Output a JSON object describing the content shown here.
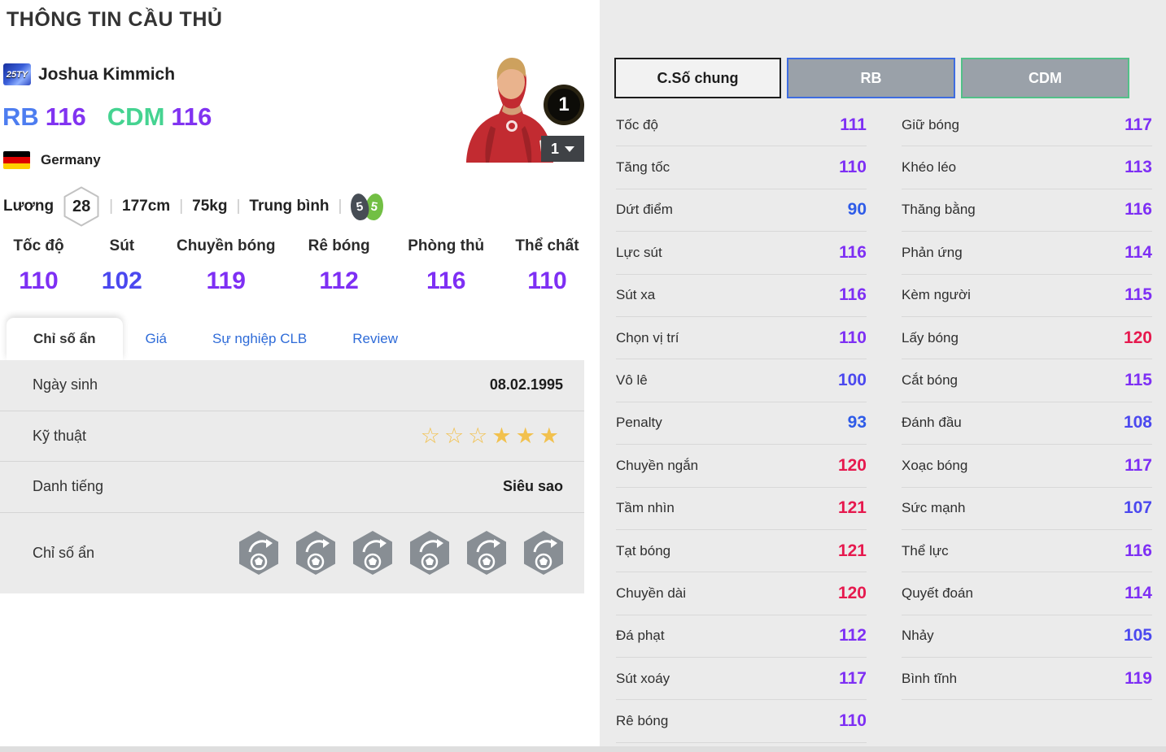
{
  "page": {
    "title": "THÔNG TIN CẦU THỦ"
  },
  "player": {
    "season_badge": "25TY",
    "name": "Joshua Kimmich",
    "positions": [
      {
        "label": "RB",
        "rating": "116"
      },
      {
        "label": "CDM",
        "rating": "116"
      }
    ],
    "nation": "Germany",
    "salary_label": "Lương",
    "salary": "28",
    "height": "177cm",
    "weight": "75kg",
    "body_type": "Trung bình",
    "foot_left": "5",
    "foot_right": "5",
    "level_badge": "1",
    "level_selected": "1"
  },
  "summary_stats": [
    {
      "label": "Tốc độ",
      "value": "110"
    },
    {
      "label": "Sút",
      "value": "102"
    },
    {
      "label": "Chuyền bóng",
      "value": "119"
    },
    {
      "label": "Rê bóng",
      "value": "112"
    },
    {
      "label": "Phòng thủ",
      "value": "116"
    },
    {
      "label": "Thể chất",
      "value": "110"
    }
  ],
  "tabs": [
    {
      "label": "Chỉ số ẩn",
      "active": true
    },
    {
      "label": "Giá",
      "active": false
    },
    {
      "label": "Sự nghiệp CLB",
      "active": false
    },
    {
      "label": "Review",
      "active": false
    }
  ],
  "info_rows": {
    "birth_label": "Ngày sinh",
    "birth_value": "08.02.1995",
    "skill_label": "Kỹ thuật",
    "skill_stars_total": 6,
    "skill_stars_filled": 3,
    "fame_label": "Danh tiếng",
    "fame_value": "Siêu sao",
    "hidden_label": "Chỉ số ẩn",
    "hidden_traits": [
      "hidden-trait-icon-1",
      "hidden-trait-icon-2",
      "hidden-trait-icon-3",
      "hidden-trait-icon-4",
      "hidden-trait-icon-5",
      "hidden-trait-icon-6"
    ]
  },
  "detail_panel": {
    "buttons": [
      {
        "label": "C.Số chung",
        "style": "general"
      },
      {
        "label": "RB",
        "style": "rb"
      },
      {
        "label": "CDM",
        "style": "cdm"
      }
    ],
    "left_column": [
      {
        "label": "Tốc độ",
        "value": "111"
      },
      {
        "label": "Tăng tốc",
        "value": "110"
      },
      {
        "label": "Dứt điểm",
        "value": "90"
      },
      {
        "label": "Lực sút",
        "value": "116"
      },
      {
        "label": "Sút xa",
        "value": "116"
      },
      {
        "label": "Chọn vị trí",
        "value": "110"
      },
      {
        "label": "Vô lê",
        "value": "100"
      },
      {
        "label": "Penalty",
        "value": "93"
      },
      {
        "label": "Chuyền ngắn",
        "value": "120"
      },
      {
        "label": "Tầm nhìn",
        "value": "121"
      },
      {
        "label": "Tạt bóng",
        "value": "121"
      },
      {
        "label": "Chuyền dài",
        "value": "120"
      },
      {
        "label": "Đá phạt",
        "value": "112"
      },
      {
        "label": "Sút xoáy",
        "value": "117"
      },
      {
        "label": "Rê bóng",
        "value": "110"
      }
    ],
    "right_column": [
      {
        "label": "Giữ bóng",
        "value": "117"
      },
      {
        "label": "Khéo léo",
        "value": "113"
      },
      {
        "label": "Thăng bằng",
        "value": "116"
      },
      {
        "label": "Phản ứng",
        "value": "114"
      },
      {
        "label": "Kèm người",
        "value": "115"
      },
      {
        "label": "Lấy bóng",
        "value": "120"
      },
      {
        "label": "Cắt bóng",
        "value": "115"
      },
      {
        "label": "Đánh đầu",
        "value": "108"
      },
      {
        "label": "Xoạc bóng",
        "value": "117"
      },
      {
        "label": "Sức mạnh",
        "value": "107"
      },
      {
        "label": "Thể lực",
        "value": "116"
      },
      {
        "label": "Quyết đoán",
        "value": "114"
      },
      {
        "label": "Nhảy",
        "value": "105"
      },
      {
        "label": "Bình tĩnh",
        "value": "119"
      }
    ]
  },
  "colors": {
    "rb_blue": "#4d7df0",
    "cdm_green": "#45d391",
    "ovr_purple": "#8133f1",
    "tier_under_100": "#2e5be8",
    "tier_100s": "#4b48ef",
    "tier_110s": "#7e2ff4",
    "tier_120s": "#e6194e",
    "tab_link_blue": "#2e6bd8",
    "star_gold": "#f2c14e",
    "flag_black": "#000000",
    "flag_red": "#dd0000",
    "flag_gold": "#ffce00",
    "foot_left_gray": "#474d55",
    "foot_right_green": "#72bf44",
    "trait_hex_gray": "#888e94"
  }
}
